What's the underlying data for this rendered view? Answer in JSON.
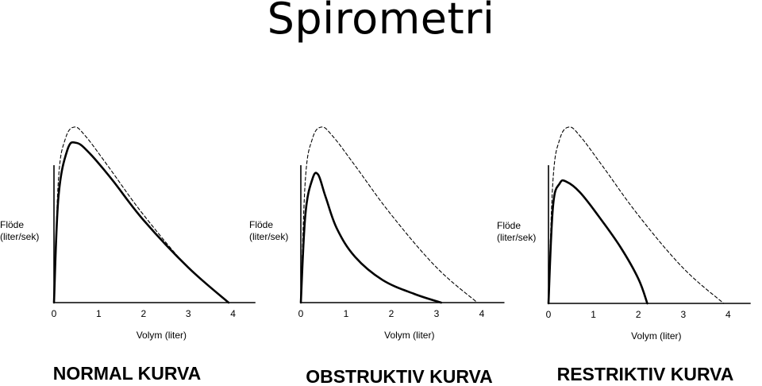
{
  "slide": {
    "title": "Spirometri"
  },
  "chart_data": [
    {
      "type": "line",
      "title": "NORMAL KURVA",
      "xlabel": "Volym (liter)",
      "ylabel": [
        "Flöde",
        "(liter/sek)"
      ],
      "xlim": [
        0,
        4.5
      ],
      "xticks": [
        0,
        1,
        2,
        3,
        4
      ],
      "series": [
        {
          "style": "dashed",
          "x": [
            0,
            0.1,
            0.25,
            0.45,
            0.7,
            1.2,
            2.0,
            3.0,
            3.9
          ],
          "y": [
            0,
            0.7,
            0.93,
            1.0,
            0.95,
            0.78,
            0.5,
            0.2,
            0
          ]
        },
        {
          "style": "solid",
          "x": [
            0,
            0.1,
            0.3,
            0.5,
            0.8,
            1.3,
            2.0,
            3.0,
            3.9
          ],
          "y": [
            0,
            0.6,
            0.87,
            0.91,
            0.85,
            0.7,
            0.47,
            0.2,
            0
          ]
        }
      ]
    },
    {
      "type": "line",
      "title": "OBSTRUKTIV KURVA",
      "xlabel": "Volym (liter)",
      "ylabel": [
        "Flöde",
        "(liter/sek)"
      ],
      "xlim": [
        0,
        4.5
      ],
      "xticks": [
        0,
        1,
        2,
        3,
        4
      ],
      "series": [
        {
          "style": "dashed",
          "x": [
            0,
            0.1,
            0.25,
            0.45,
            0.7,
            1.2,
            2.0,
            3.0,
            3.9
          ],
          "y": [
            0,
            0.7,
            0.93,
            1.0,
            0.95,
            0.78,
            0.5,
            0.2,
            0
          ]
        },
        {
          "style": "solid",
          "x": [
            0,
            0.1,
            0.25,
            0.38,
            0.55,
            0.8,
            1.2,
            1.8,
            2.5,
            3.1
          ],
          "y": [
            0,
            0.5,
            0.7,
            0.73,
            0.6,
            0.42,
            0.26,
            0.13,
            0.05,
            0
          ]
        }
      ]
    },
    {
      "type": "line",
      "title": "RESTRIKTIV KURVA",
      "xlabel": "Volym (liter)",
      "ylabel": [
        "Flöde",
        "(liter/sek)"
      ],
      "xlim": [
        0,
        4.5
      ],
      "xticks": [
        0,
        1,
        2,
        3,
        4
      ],
      "series": [
        {
          "style": "dashed",
          "x": [
            0,
            0.1,
            0.25,
            0.45,
            0.7,
            1.2,
            2.0,
            3.0,
            3.9
          ],
          "y": [
            0,
            0.7,
            0.93,
            1.0,
            0.95,
            0.78,
            0.5,
            0.2,
            0
          ]
        },
        {
          "style": "solid",
          "x": [
            0,
            0.1,
            0.25,
            0.4,
            0.7,
            1.1,
            1.6,
            2.0,
            2.2
          ],
          "y": [
            0,
            0.55,
            0.68,
            0.69,
            0.63,
            0.5,
            0.32,
            0.14,
            0
          ]
        }
      ]
    }
  ]
}
